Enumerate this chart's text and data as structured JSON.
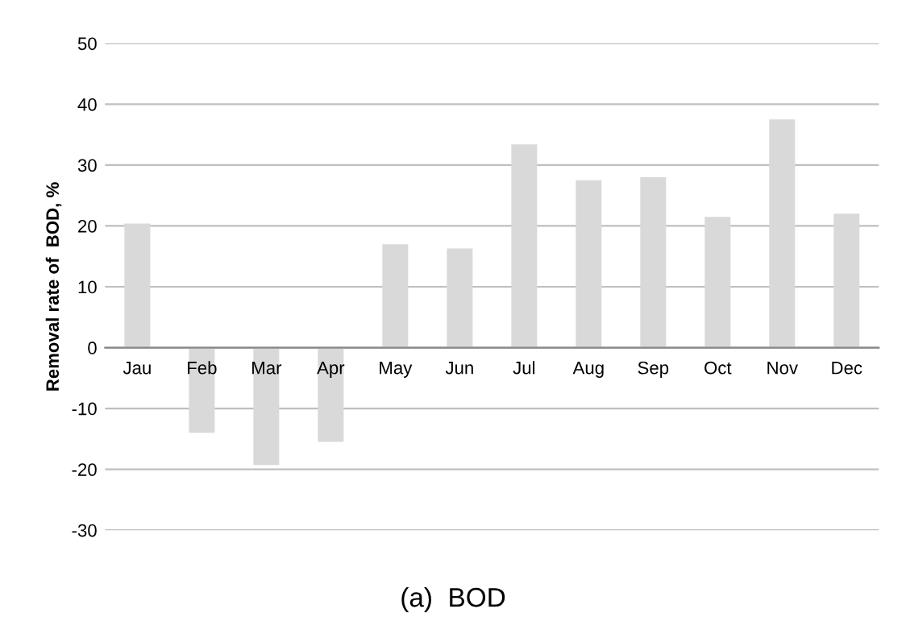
{
  "chart_data": {
    "type": "bar",
    "title": "(a)  BOD",
    "ylabel": "Removal rate of  BOD, %",
    "categories": [
      "Jau",
      "Feb",
      "Mar",
      "Apr",
      "May",
      "Jun",
      "Jul",
      "Aug",
      "Sep",
      "Oct",
      "Nov",
      "Dec"
    ],
    "values": [
      20.4,
      -14,
      -19.3,
      -15.5,
      17,
      16.3,
      33.4,
      27.5,
      28,
      21.5,
      37.5,
      22
    ],
    "color": "#d9d9d9",
    "ylim": [
      -30,
      50
    ],
    "yticks": [
      -30,
      -20,
      -10,
      0,
      10,
      20,
      30,
      40,
      50
    ],
    "grid": "y"
  }
}
